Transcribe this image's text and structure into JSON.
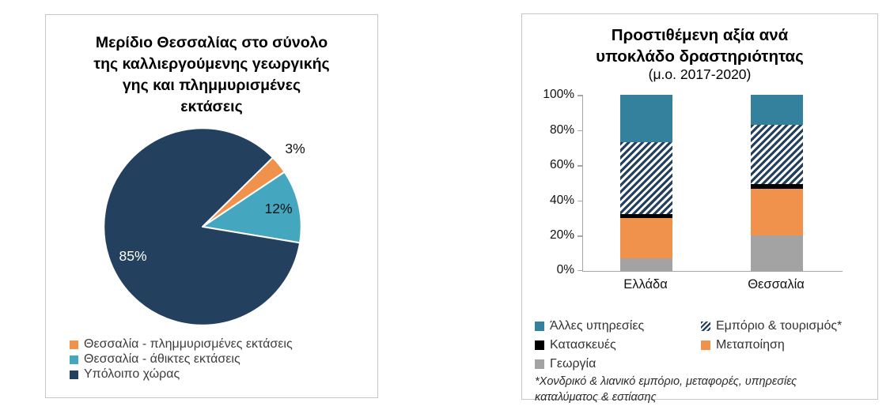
{
  "colors": {
    "navy": "#24405F",
    "light_blue": "#45A6BF",
    "orange": "#F0924C",
    "teal": "#33819D",
    "gray": "#A3A3A3",
    "black": "#000000",
    "axis_gray": "#A6A6A6",
    "panel_border": "#C6C6C6",
    "hatch_css": "repeating-linear-gradient(135deg, #24405F 0px, #24405F 3.2px, #FFFFFF 3.2px, #FFFFFF 6.2px)",
    "hatch_swatch_css": "repeating-linear-gradient(135deg, #24405F 0px, #24405F 2.2px, #FFFFFF 2.2px, #FFFFFF 4.4px)"
  },
  "left_chart": {
    "title_lines": [
      "Μερίδιο Θεσσαλίας στο σύνολο",
      "της καλλιεργούμενης γεωργικής",
      "γης και πλημμυρισμένες",
      "εκτάσεις"
    ],
    "data_labels": {
      "big": "85%",
      "mid": "12%",
      "small": "3%"
    },
    "legend": [
      {
        "label": "Θεσσαλία - πλημμυρισμένες εκτάσεις"
      },
      {
        "label": "Θεσσαλία - άθικτες εκτάσεις"
      },
      {
        "label": "Υπόλοιπο χώρας"
      }
    ]
  },
  "right_chart": {
    "title_lines": [
      "Προστιθέμενη αξία ανά",
      "υποκλάδο δραστηριότητας"
    ],
    "subtitle": "(μ.ο. 2017-2020)",
    "y_ticks_desc": [
      "100%",
      "80%",
      "60%",
      "40%",
      "20%",
      "0%"
    ],
    "categories": [
      "Ελλάδα",
      "Θεσσαλία"
    ],
    "legend": [
      {
        "label": "Άλλες υπηρεσίες"
      },
      {
        "label": "Εμπόριο & τουρισμός*"
      },
      {
        "label": "Κατασκευές"
      },
      {
        "label": "Μεταποίηση"
      },
      {
        "label": "Γεωργία"
      }
    ],
    "footnote_lines": [
      "*Χονδρικό & λιανικό εμπόριο, μεταφορές, υπηρεσίες",
      "καταλύματος & εστίασης"
    ]
  },
  "chart_data": [
    {
      "type": "pie",
      "title": "Μερίδιο Θεσσαλίας στο σύνολο της καλλιεργούμενης γεωργικής γης και πλημμυρισμένες εκτάσεις",
      "labels": [
        "Θεσσαλία - πλημμυρισμένες εκτάσεις",
        "Θεσσαλία - άθικτες εκτάσεις",
        "Υπόλοιπο χώρας"
      ],
      "values": [
        3,
        12,
        85
      ],
      "data_labels": [
        "3%",
        "12%",
        "85%"
      ],
      "slice_colors": [
        "#F0924C",
        "#45A6BF",
        "#24405F"
      ],
      "start_angle_deg": 45,
      "legend_position": "bottom-left"
    },
    {
      "type": "bar",
      "stacked": true,
      "title": "Προστιθέμενη αξία ανά υποκλάδο δραστηριότητας",
      "subtitle": "(μ.ο. 2017-2020)",
      "categories": [
        "Ελλάδα",
        "Θεσσαλία"
      ],
      "series": [
        {
          "name": "Γεωργία",
          "values": [
            7,
            20
          ],
          "color": "#A3A3A3"
        },
        {
          "name": "Μεταποίηση",
          "values": [
            23,
            26.5
          ],
          "color": "#F0924C"
        },
        {
          "name": "Κατασκευές",
          "values": [
            2.5,
            3
          ],
          "color": "#000000"
        },
        {
          "name": "Εμπόριο & τουρισμός*",
          "values": [
            40.5,
            33.3
          ],
          "pattern": "diagonal-hatch",
          "pattern_colors": [
            "#24405F",
            "#FFFFFF"
          ]
        },
        {
          "name": "Άλλες υπηρεσίες",
          "values": [
            27,
            17.2
          ],
          "color": "#33819D"
        }
      ],
      "ylim": [
        0,
        100
      ],
      "y_ticks": [
        "0%",
        "20%",
        "40%",
        "60%",
        "80%",
        "100%"
      ],
      "grid": false,
      "legend_position": "bottom",
      "footnote": "*Χονδρικό & λιανικό εμπόριο, μεταφορές, υπηρεσίες καταλύματος & εστίασης"
    }
  ]
}
